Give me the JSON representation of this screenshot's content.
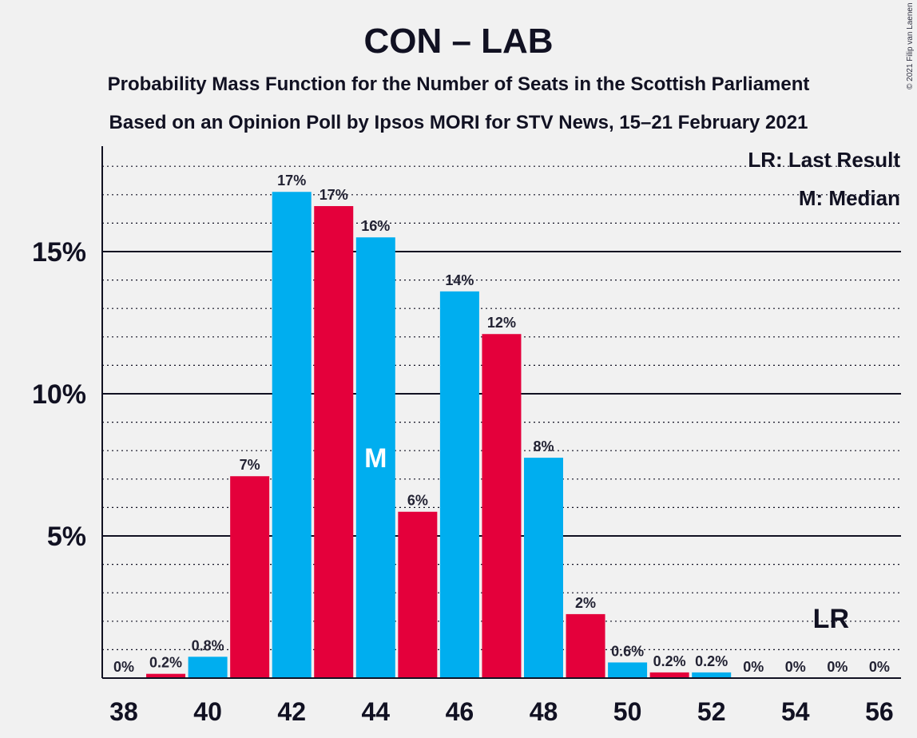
{
  "title": "CON – LAB",
  "subtitle1": "Probability Mass Function for the Number of Seats in the Scottish Parliament",
  "subtitle2": "Based on an Opinion Poll by Ipsos MORI for STV News, 15–21 February 2021",
  "legend": {
    "lr": "LR: Last Result",
    "median": "M: Median"
  },
  "credit": "© 2021 Filip van Laenen",
  "colors": {
    "blue": "#00aeef",
    "red": "#e4003b",
    "background": "#f1f1f1",
    "text": "#111122"
  },
  "chart_data": {
    "type": "bar",
    "xlabel": "",
    "ylabel": "",
    "xlim": [
      37.5,
      56.5
    ],
    "ylim": [
      0,
      18.7
    ],
    "y_ticks": [
      5,
      10,
      15
    ],
    "y_tick_labels": [
      "5%",
      "10%",
      "15%"
    ],
    "x_tick_values": [
      38,
      40,
      42,
      44,
      46,
      48,
      50,
      52,
      54,
      56
    ],
    "x_tick_labels": [
      "38",
      "40",
      "42",
      "44",
      "46",
      "48",
      "50",
      "52",
      "54",
      "56"
    ],
    "bars": [
      {
        "seats": 38,
        "value": 0.0,
        "label": "0%",
        "color": "blue"
      },
      {
        "seats": 39,
        "value": 0.15,
        "label": "0.2%",
        "color": "red"
      },
      {
        "seats": 40,
        "value": 0.75,
        "label": "0.8%",
        "color": "blue"
      },
      {
        "seats": 41,
        "value": 7.1,
        "label": "7%",
        "color": "red"
      },
      {
        "seats": 42,
        "value": 17.1,
        "label": "17%",
        "color": "blue"
      },
      {
        "seats": 43,
        "value": 16.6,
        "label": "17%",
        "color": "red"
      },
      {
        "seats": 44,
        "value": 15.5,
        "label": "16%",
        "color": "blue"
      },
      {
        "seats": 45,
        "value": 5.85,
        "label": "6%",
        "color": "red"
      },
      {
        "seats": 46,
        "value": 13.6,
        "label": "14%",
        "color": "blue"
      },
      {
        "seats": 47,
        "value": 12.1,
        "label": "12%",
        "color": "red"
      },
      {
        "seats": 48,
        "value": 7.75,
        "label": "8%",
        "color": "blue"
      },
      {
        "seats": 49,
        "value": 2.25,
        "label": "2%",
        "color": "red"
      },
      {
        "seats": 50,
        "value": 0.55,
        "label": "0.6%",
        "color": "blue"
      },
      {
        "seats": 51,
        "value": 0.2,
        "label": "0.2%",
        "color": "red"
      },
      {
        "seats": 52,
        "value": 0.2,
        "label": "0.2%",
        "color": "blue"
      },
      {
        "seats": 53,
        "value": 0.0,
        "label": "0%",
        "color": "red"
      },
      {
        "seats": 54,
        "value": 0.0,
        "label": "0%",
        "color": "blue"
      },
      {
        "seats": 55,
        "value": 0.0,
        "label": "0%",
        "color": "red"
      },
      {
        "seats": 56,
        "value": 0.0,
        "label": "0%",
        "color": "blue"
      }
    ],
    "median": {
      "seats": 44,
      "label": "M"
    },
    "last_result": {
      "seats": 55,
      "label": "LR"
    }
  }
}
